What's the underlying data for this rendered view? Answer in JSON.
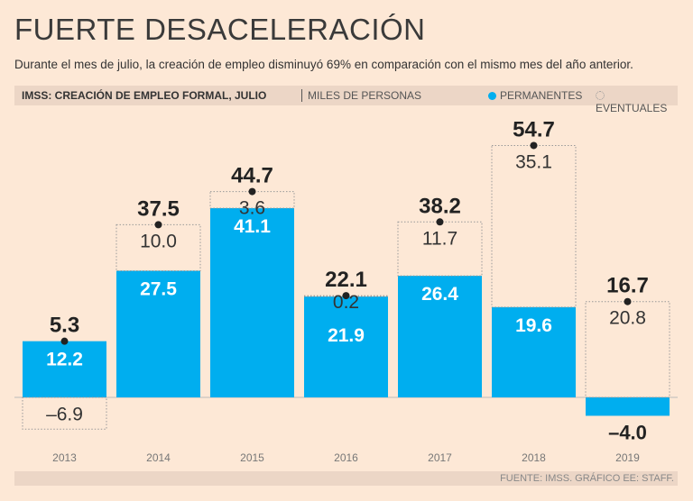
{
  "title": "FUERTE DESACELERACIÓN",
  "subtitle": "Durante el mes de julio, la creación de empleo disminuyó 69% en comparación con el mismo mes del año anterior.",
  "header": {
    "label": "IMSS: CREACIÓN DE EMPLEO FORMAL, JULIO",
    "unit": "MILES DE PERSONAS"
  },
  "source": "FUENTE: IMSS. GRÁFICO EE: STAFF.",
  "chart_data": {
    "type": "bar",
    "stacked": true,
    "categories": [
      "2013",
      "2014",
      "2015",
      "2016",
      "2017",
      "2018",
      "2019"
    ],
    "series": [
      {
        "name": "PERMANENTES",
        "color": "#00aeef",
        "values": [
          12.2,
          27.5,
          41.1,
          21.9,
          26.4,
          19.6,
          -4.0
        ]
      },
      {
        "name": "EVENTUALES",
        "style": "dotted-outline",
        "values": [
          -6.9,
          10.0,
          3.6,
          0.2,
          11.7,
          35.1,
          20.8
        ]
      }
    ],
    "totals": [
      5.3,
      37.5,
      44.7,
      22.1,
      38.2,
      54.7,
      16.7
    ],
    "legend": "top-right",
    "grid": false
  }
}
